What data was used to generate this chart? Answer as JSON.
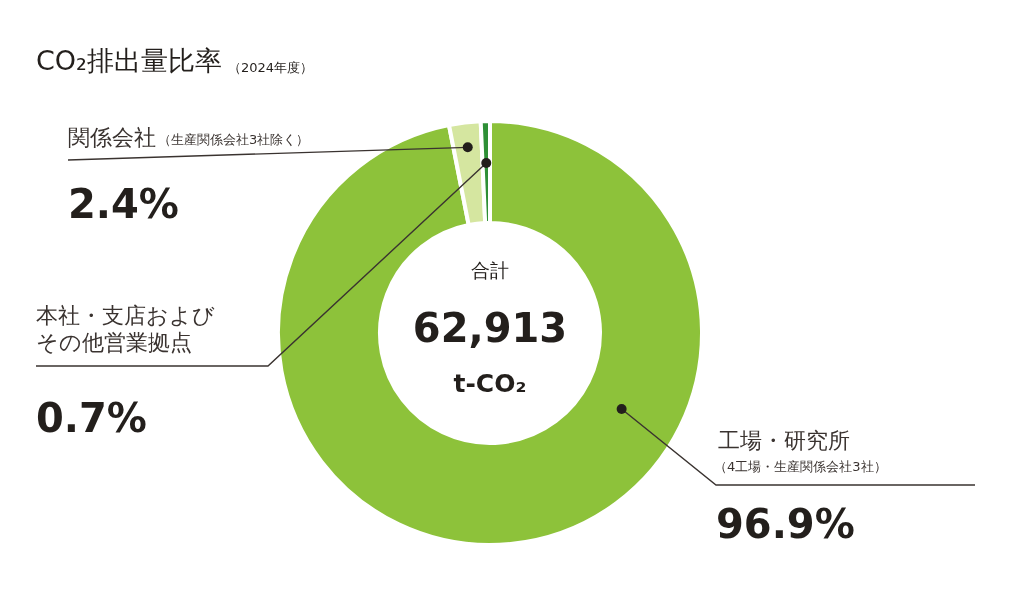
{
  "chart_data": {
    "type": "donut",
    "title": "CO₂排出量比率",
    "subtitle": "（2024年度）",
    "categories": [
      "工場・研究所",
      "関係会社",
      "本社・支店およびその他営業拠点"
    ],
    "values": [
      96.9,
      2.4,
      0.7
    ],
    "colors": [
      "#8dc23a",
      "#d5e6a0",
      "#2e8f36"
    ],
    "value_labels": [
      "96.9%",
      "2.4%",
      "0.7%"
    ],
    "annotations": [
      "合計",
      "62,913",
      "t-CO₂",
      "（4工場・生産関係会社3社）",
      "（生産関係会社3社除く）"
    ]
  }
}
